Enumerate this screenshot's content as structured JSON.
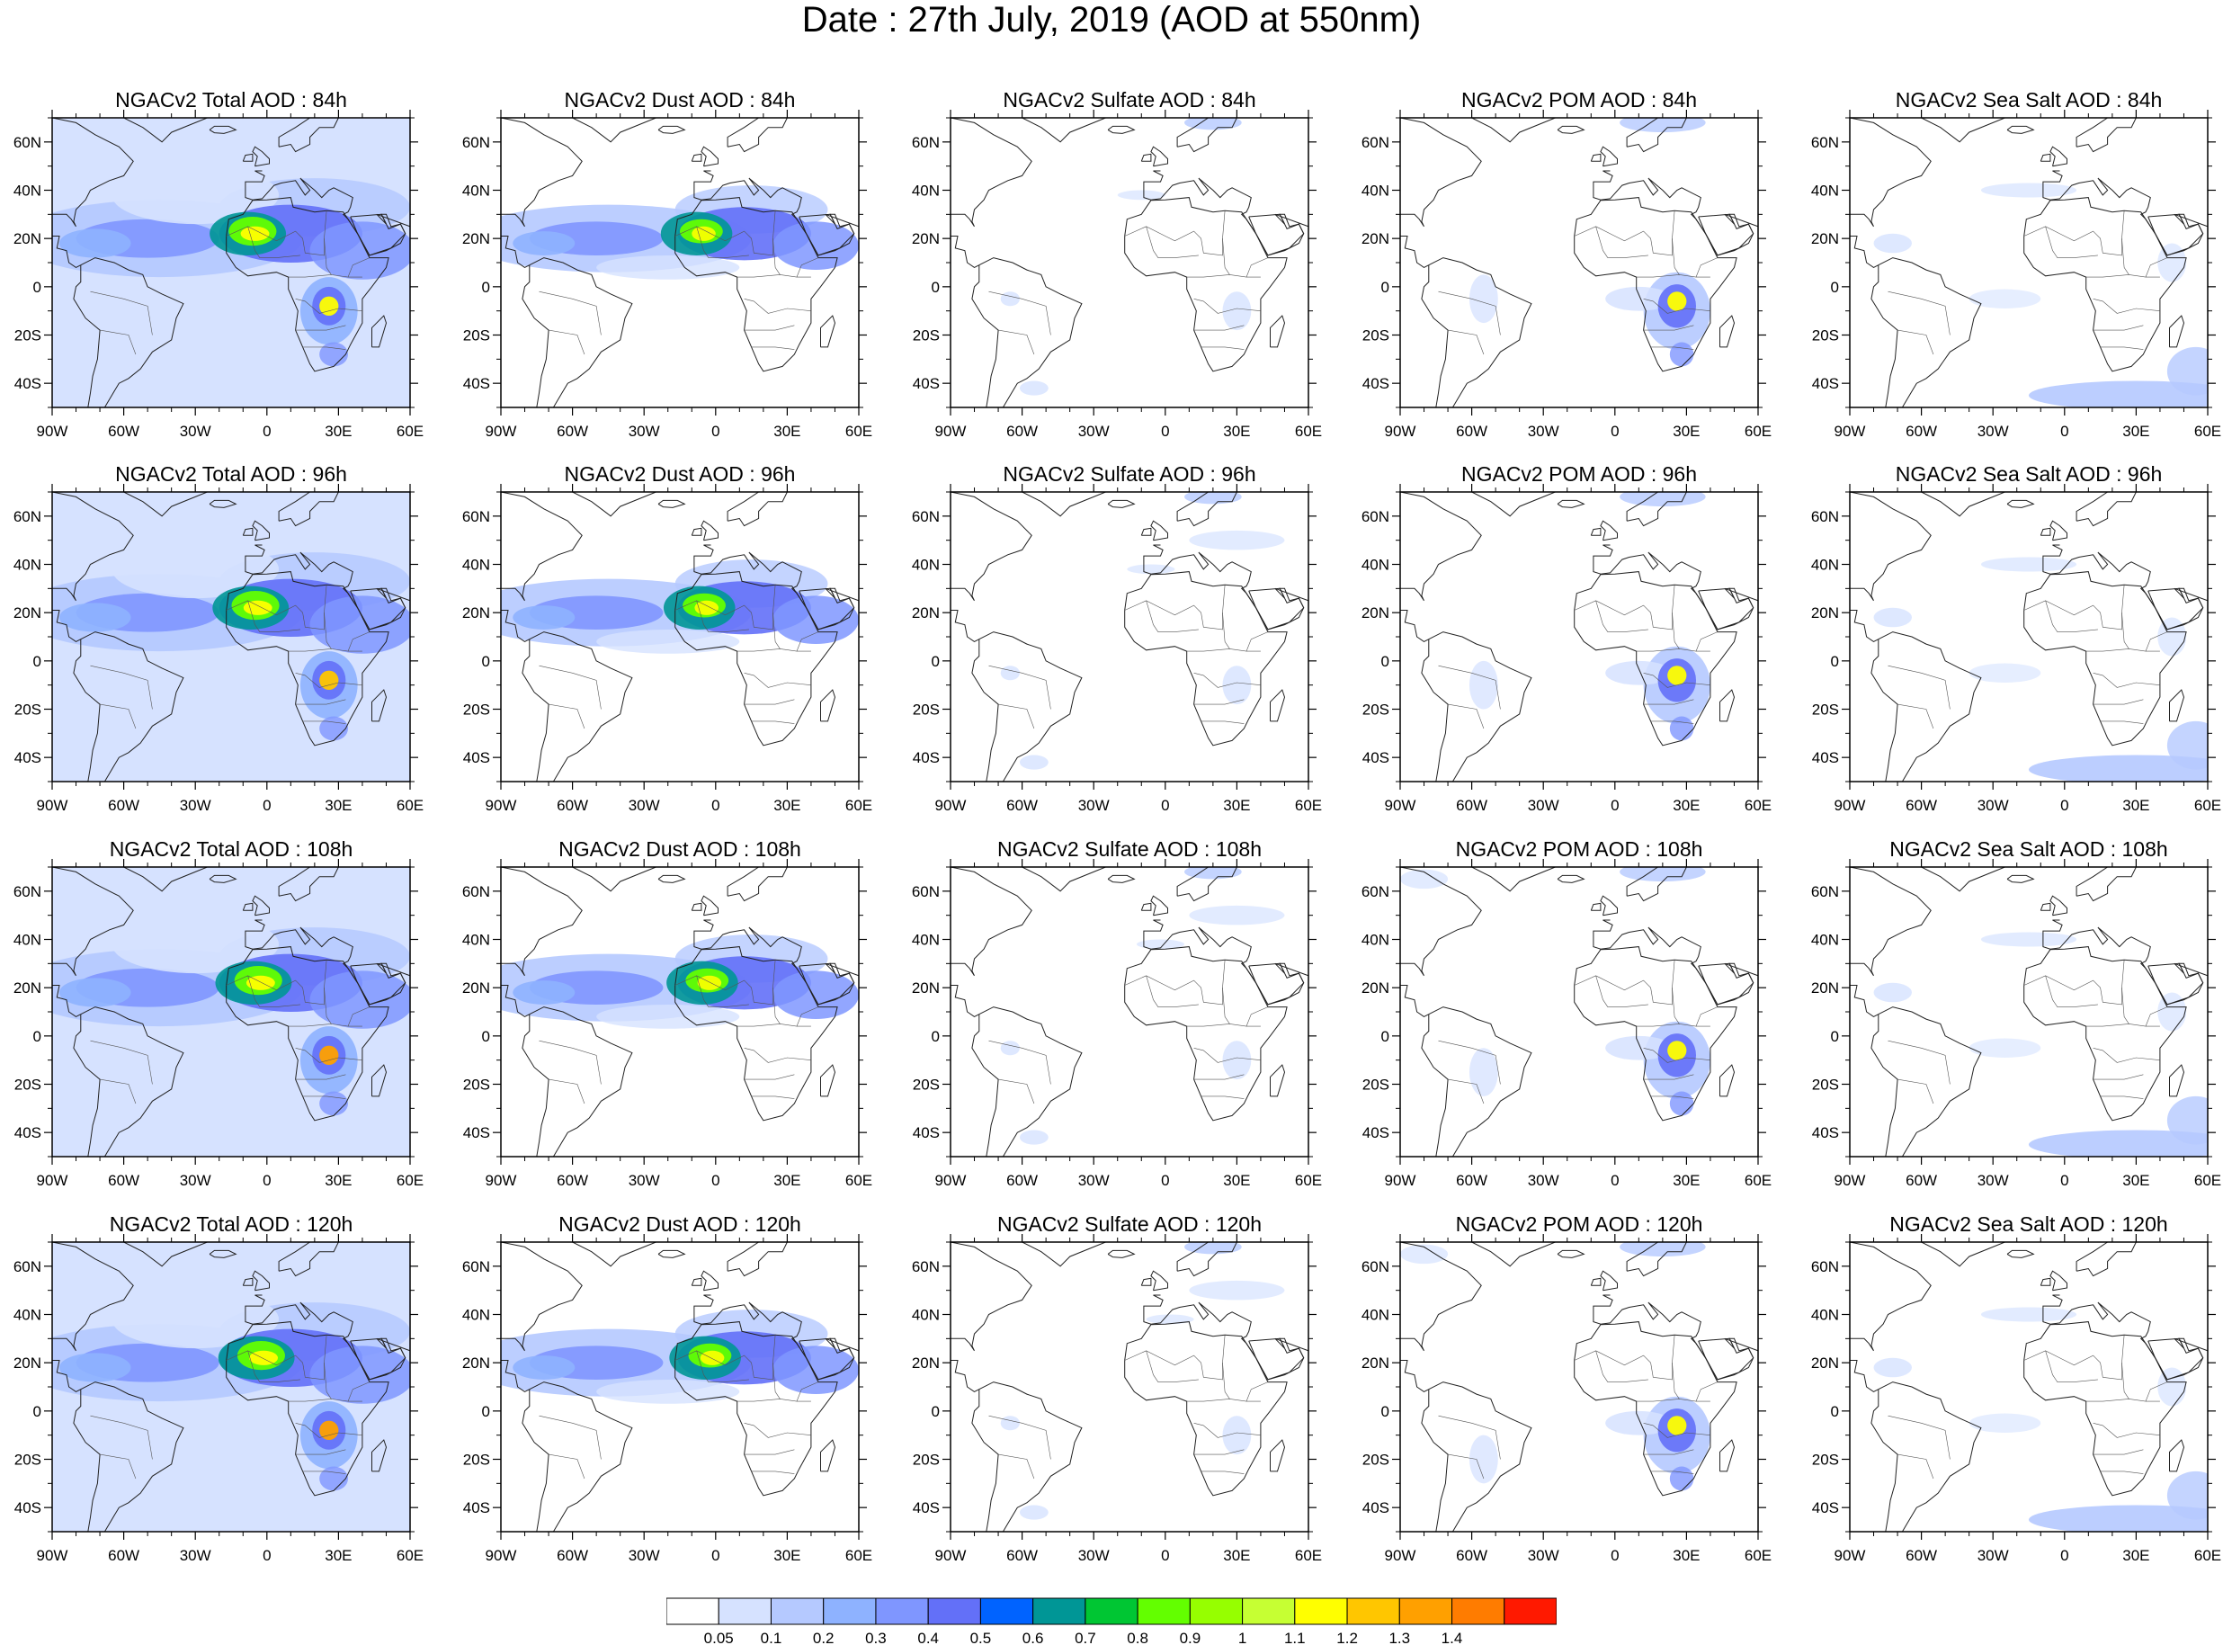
{
  "title": "Date : 27th July, 2019 (AOD at 550nm)",
  "rows": [
    {
      "lead": "84h",
      "panels": [
        "NGACv2 Total AOD : 84h",
        "NGACv2 Dust AOD : 84h",
        "NGACv2 Sulfate AOD : 84h",
        "NGACv2 POM AOD : 84h",
        "NGACv2 Sea Salt AOD : 84h"
      ]
    },
    {
      "lead": "96h",
      "panels": [
        "NGACv2 Total AOD : 96h",
        "NGACv2 Dust AOD : 96h",
        "NGACv2 Sulfate AOD : 96h",
        "NGACv2 POM AOD : 96h",
        "NGACv2 Sea Salt AOD : 96h"
      ]
    },
    {
      "lead": "108h",
      "panels": [
        "NGACv2 Total AOD : 108h",
        "NGACv2 Dust AOD : 108h",
        "NGACv2 Sulfate AOD : 108h",
        "NGACv2 POM AOD : 108h",
        "NGACv2 Sea Salt AOD : 108h"
      ]
    },
    {
      "lead": "120h",
      "panels": [
        "NGACv2 Total AOD : 120h",
        "NGACv2 Dust AOD : 120h",
        "NGACv2 Sulfate AOD : 120h",
        "NGACv2 POM AOD : 120h",
        "NGACv2 Sea Salt  AOD : 120h"
      ]
    }
  ],
  "species": [
    "total",
    "dust",
    "sulfate",
    "pom",
    "seasalt"
  ],
  "lat_ticks": [
    "60N",
    "40N",
    "20N",
    "0",
    "20S",
    "40S"
  ],
  "lon_ticks": [
    "90W",
    "60W",
    "30W",
    "0",
    "30E",
    "60E"
  ],
  "map_extent": {
    "lon": [
      -90,
      60
    ],
    "lat": [
      -50,
      70
    ]
  },
  "colorbar": {
    "colors": [
      "#ffffff",
      "#d6e2ff",
      "#b5c9ff",
      "#8eb2ff",
      "#7f96ff",
      "#6370f8",
      "#0063ff",
      "#009696",
      "#00c633",
      "#63ff00",
      "#96ff00",
      "#c6ff33",
      "#ffff00",
      "#ffc600",
      "#ffa000",
      "#ff7c00",
      "#ff1900"
    ],
    "labels": [
      "0.05",
      "0.1",
      "0.2",
      "0.3",
      "0.4",
      "0.5",
      "0.6",
      "0.7",
      "0.8",
      "0.9",
      "1",
      "1.1",
      "1.2",
      "1.3",
      "1.4"
    ]
  }
}
